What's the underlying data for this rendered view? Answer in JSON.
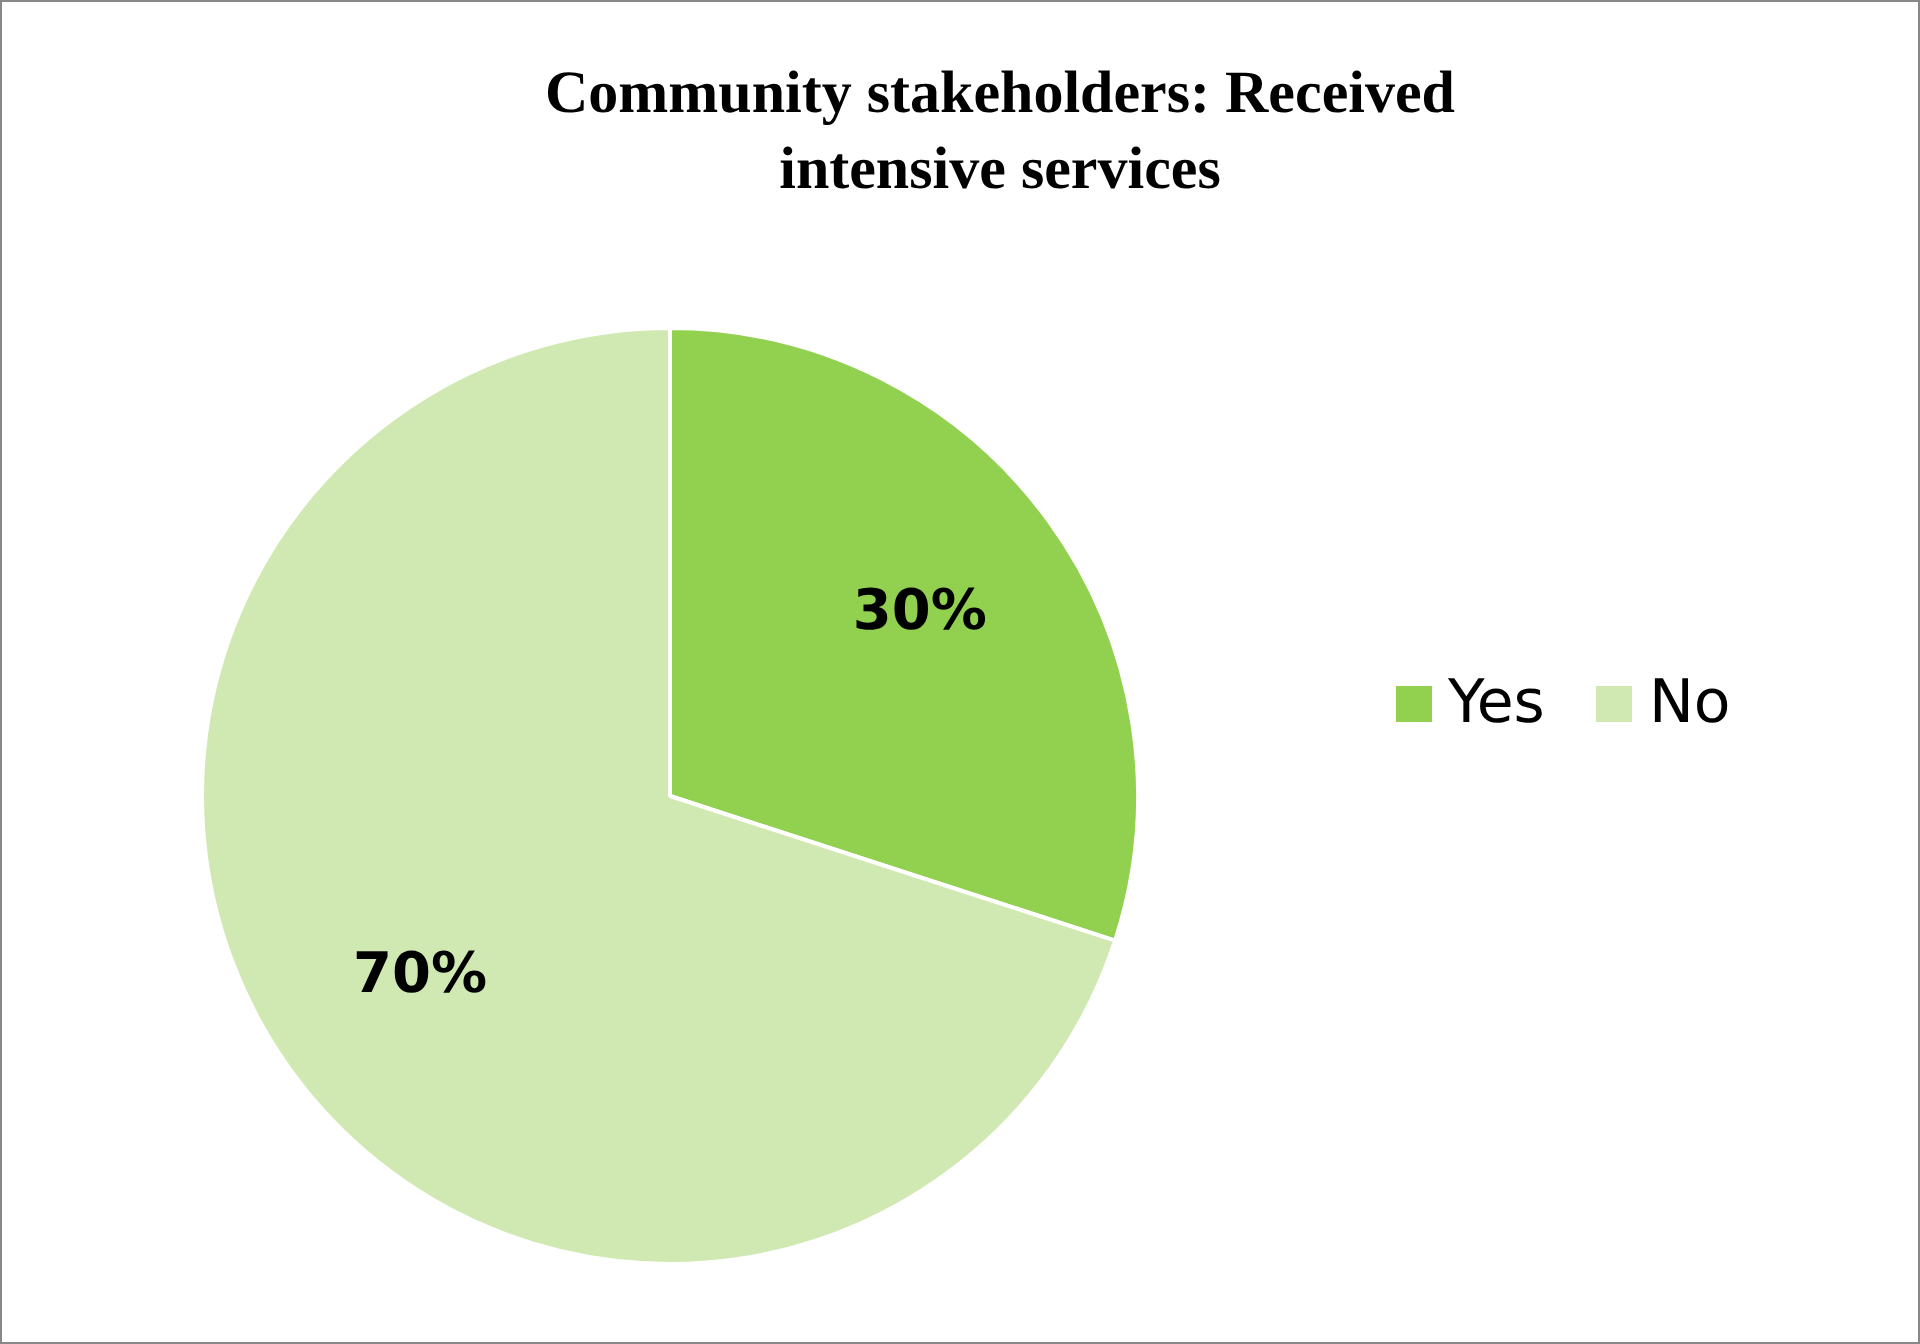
{
  "chart_data": {
    "type": "pie",
    "title": "Community stakeholders: Received intensive services",
    "categories": [
      "Yes",
      "No"
    ],
    "values": [
      30,
      70
    ],
    "value_labels": [
      "30%",
      "70%"
    ],
    "colors": [
      "#92d050",
      "#d0e9b3"
    ],
    "legend": "right"
  }
}
